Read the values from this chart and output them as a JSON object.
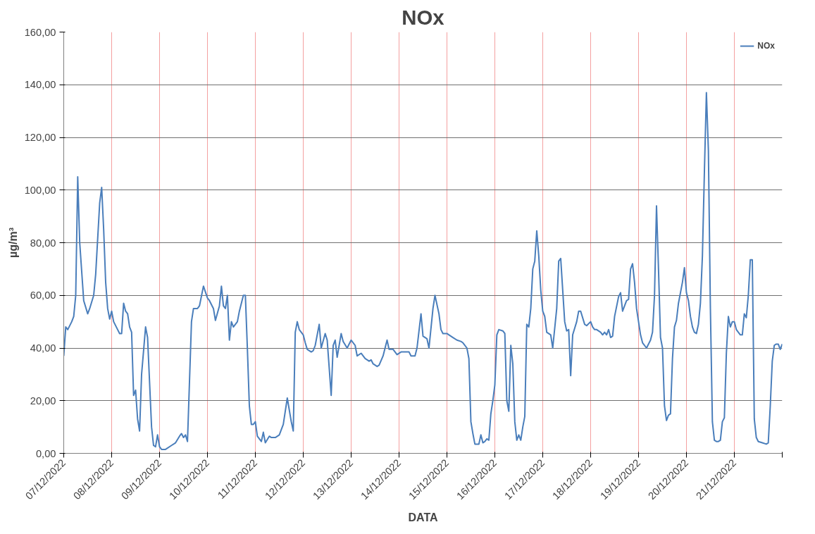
{
  "chart_data": {
    "type": "line",
    "title": "NOx",
    "xlabel": "DATA",
    "ylabel": "µg/m³",
    "legend": "top right",
    "grid": true,
    "marker": "none",
    "line_style": "solid",
    "xlim": [
      "2022-12-07",
      "2022-12-22"
    ],
    "ylim": [
      0,
      160
    ],
    "xticks": [
      {
        "value": "2022-12-07",
        "label": "07/12/2022"
      },
      {
        "value": "2022-12-08",
        "label": "08/12/2022"
      },
      {
        "value": "2022-12-09",
        "label": "09/12/2022"
      },
      {
        "value": "2022-12-10",
        "label": "10/12/2022"
      },
      {
        "value": "2022-12-11",
        "label": "11/12/2022"
      },
      {
        "value": "2022-12-12",
        "label": "12/12/2022"
      },
      {
        "value": "2022-12-13",
        "label": "13/12/2022"
      },
      {
        "value": "2022-12-14",
        "label": "14/12/2022"
      },
      {
        "value": "2022-12-15",
        "label": "15/12/2022"
      },
      {
        "value": "2022-12-16",
        "label": "16/12/2022"
      },
      {
        "value": "2022-12-17",
        "label": "17/12/2022"
      },
      {
        "value": "2022-12-18",
        "label": "18/12/2022"
      },
      {
        "value": "2022-12-19",
        "label": "19/12/2022"
      },
      {
        "value": "2022-12-20",
        "label": "20/12/2022"
      },
      {
        "value": "2022-12-21",
        "label": "21/12/2022"
      },
      {
        "value": "2022-12-22",
        "label": null
      }
    ],
    "yticks": [
      {
        "value": 0,
        "label": "0,00"
      },
      {
        "value": 20,
        "label": "20,00"
      },
      {
        "value": 40,
        "label": "40,00"
      },
      {
        "value": 60,
        "label": "60,00"
      },
      {
        "value": 80,
        "label": "80,00"
      },
      {
        "value": 100,
        "label": "100,00"
      },
      {
        "value": 120,
        "label": "120,00"
      },
      {
        "value": 140,
        "label": "140,00"
      },
      {
        "value": 160,
        "label": "160,00"
      }
    ],
    "series": [
      {
        "name": "NOx",
        "color": "#4a7ebb",
        "x": [
          "2022-12-07T00:00",
          "2022-12-07T01:00",
          "2022-12-07T02:00",
          "2022-12-07T04:00",
          "2022-12-07T05:00",
          "2022-12-07T06:00",
          "2022-12-07T07:00",
          "2022-12-07T08:00",
          "2022-12-07T10:00",
          "2022-12-07T12:00",
          "2022-12-07T13:00",
          "2022-12-07T15:00",
          "2022-12-07T16:00",
          "2022-12-07T18:00",
          "2022-12-07T19:00",
          "2022-12-07T20:00",
          "2022-12-07T21:00",
          "2022-12-07T22:00",
          "2022-12-07T23:00",
          "2022-12-08T00:00",
          "2022-12-08T01:00",
          "2022-12-08T03:00",
          "2022-12-08T04:00",
          "2022-12-08T05:00",
          "2022-12-08T06:00",
          "2022-12-08T07:00",
          "2022-12-08T08:00",
          "2022-12-08T09:00",
          "2022-12-08T10:00",
          "2022-12-08T11:00",
          "2022-12-08T12:00",
          "2022-12-08T13:00",
          "2022-12-08T14:00",
          "2022-12-08T15:00",
          "2022-12-08T17:00",
          "2022-12-08T18:00",
          "2022-12-08T20:00",
          "2022-12-08T21:00",
          "2022-12-08T22:00",
          "2022-12-08T23:00",
          "2022-12-09T00:00",
          "2022-12-09T01:00",
          "2022-12-09T03:00",
          "2022-12-09T06:00",
          "2022-12-09T08:00",
          "2022-12-09T10:00",
          "2022-12-09T11:00",
          "2022-12-09T12:00",
          "2022-12-09T13:00",
          "2022-12-09T14:00",
          "2022-12-09T16:00",
          "2022-12-09T17:00",
          "2022-12-09T19:00",
          "2022-12-09T20:00",
          "2022-12-09T22:00",
          "2022-12-10T00:00",
          "2022-12-10T01:00",
          "2022-12-10T03:00",
          "2022-12-10T04:00",
          "2022-12-10T06:00",
          "2022-12-10T07:00",
          "2022-12-10T08:00",
          "2022-12-10T09:00",
          "2022-12-10T10:00",
          "2022-12-10T11:00",
          "2022-12-10T12:00",
          "2022-12-10T13:00",
          "2022-12-10T15:00",
          "2022-12-10T16:00",
          "2022-12-10T18:00",
          "2022-12-10T19:00",
          "2022-12-10T20:00",
          "2022-12-10T21:00",
          "2022-12-10T22:00",
          "2022-12-10T23:00",
          "2022-12-11T00:00",
          "2022-12-11T01:00",
          "2022-12-11T03:00",
          "2022-12-11T04:00",
          "2022-12-11T05:00",
          "2022-12-11T07:00",
          "2022-12-11T08:00",
          "2022-12-11T09:00",
          "2022-12-11T10:00",
          "2022-12-11T12:00",
          "2022-12-11T14:00",
          "2022-12-11T16:00",
          "2022-12-11T18:00",
          "2022-12-11T19:00",
          "2022-12-11T20:00",
          "2022-12-11T21:00",
          "2022-12-11T22:00",
          "2022-12-12T00:00",
          "2022-12-12T01:00",
          "2022-12-12T02:00",
          "2022-12-12T04:00",
          "2022-12-12T05:00",
          "2022-12-12T06:00",
          "2022-12-12T08:00",
          "2022-12-12T09:00",
          "2022-12-12T11:00",
          "2022-12-12T12:00",
          "2022-12-12T14:00",
          "2022-12-12T15:00",
          "2022-12-12T16:00",
          "2022-12-12T17:00",
          "2022-12-12T19:00",
          "2022-12-12T20:00",
          "2022-12-12T22:00",
          "2022-12-13T00:00",
          "2022-12-13T02:00",
          "2022-12-13T03:00",
          "2022-12-13T05:00",
          "2022-12-13T07:00",
          "2022-12-13T09:00",
          "2022-12-13T10:00",
          "2022-12-13T11:00",
          "2022-12-13T13:00",
          "2022-12-13T14:00",
          "2022-12-13T16:00",
          "2022-12-13T18:00",
          "2022-12-13T19:00",
          "2022-12-13T21:00",
          "2022-12-13T23:00",
          "2022-12-14T01:00",
          "2022-12-14T03:00",
          "2022-12-14T05:00",
          "2022-12-14T06:00",
          "2022-12-14T08:00",
          "2022-12-14T09:00",
          "2022-12-14T11:00",
          "2022-12-14T12:00",
          "2022-12-14T14:00",
          "2022-12-14T15:00",
          "2022-12-14T17:00",
          "2022-12-14T18:00",
          "2022-12-14T20:00",
          "2022-12-14T21:00",
          "2022-12-14T22:00",
          "2022-12-15T00:00",
          "2022-12-15T01:00",
          "2022-12-15T03:00",
          "2022-12-15T05:00",
          "2022-12-15T07:00",
          "2022-12-15T08:00",
          "2022-12-15T10:00",
          "2022-12-15T11:00",
          "2022-12-15T12:00",
          "2022-12-15T13:00",
          "2022-12-15T14:00",
          "2022-12-15T16:00",
          "2022-12-15T17:00",
          "2022-12-15T18:00",
          "2022-12-15T19:00",
          "2022-12-15T20:00",
          "2022-12-15T21:00",
          "2022-12-15T22:00",
          "2022-12-15T23:00",
          "2022-12-16T00:00",
          "2022-12-16T01:00",
          "2022-12-16T02:00",
          "2022-12-16T04:00",
          "2022-12-16T05:00",
          "2022-12-16T06:00",
          "2022-12-16T07:00",
          "2022-12-16T08:00",
          "2022-12-16T09:00",
          "2022-12-16T10:00",
          "2022-12-16T11:00",
          "2022-12-16T12:00",
          "2022-12-16T13:00",
          "2022-12-16T14:00",
          "2022-12-16T15:00",
          "2022-12-16T16:00",
          "2022-12-16T17:00",
          "2022-12-16T18:00",
          "2022-12-16T19:00",
          "2022-12-16T20:00",
          "2022-12-16T21:00",
          "2022-12-16T22:00",
          "2022-12-16T23:00",
          "2022-12-17T00:00",
          "2022-12-17T01:00",
          "2022-12-17T02:00",
          "2022-12-17T04:00",
          "2022-12-17T05:00",
          "2022-12-17T07:00",
          "2022-12-17T08:00",
          "2022-12-17T09:00",
          "2022-12-17T11:00",
          "2022-12-17T12:00",
          "2022-12-17T13:00",
          "2022-12-17T14:00",
          "2022-12-17T15:00",
          "2022-12-17T17:00",
          "2022-12-17T18:00",
          "2022-12-17T19:00",
          "2022-12-17T21:00",
          "2022-12-17T22:00",
          "2022-12-18T00:00",
          "2022-12-18T01:00",
          "2022-12-18T02:00",
          "2022-12-18T03:00",
          "2022-12-18T05:00",
          "2022-12-18T06:00",
          "2022-12-18T07:00",
          "2022-12-18T08:00",
          "2022-12-18T09:00",
          "2022-12-18T10:00",
          "2022-12-18T11:00",
          "2022-12-18T12:00",
          "2022-12-18T14:00",
          "2022-12-18T15:00",
          "2022-12-18T16:00",
          "2022-12-18T17:00",
          "2022-12-18T18:00",
          "2022-12-18T19:00",
          "2022-12-18T20:00",
          "2022-12-18T21:00",
          "2022-12-18T22:00",
          "2022-12-18T23:00",
          "2022-12-19T01:00",
          "2022-12-19T02:00",
          "2022-12-19T04:00",
          "2022-12-19T06:00",
          "2022-12-19T07:00",
          "2022-12-19T08:00",
          "2022-12-19T09:00",
          "2022-12-19T10:00",
          "2022-12-19T11:00",
          "2022-12-19T12:00",
          "2022-12-19T13:00",
          "2022-12-19T14:00",
          "2022-12-19T15:00",
          "2022-12-19T16:00",
          "2022-12-19T17:00",
          "2022-12-19T18:00",
          "2022-12-19T19:00",
          "2022-12-19T20:00",
          "2022-12-19T22:00",
          "2022-12-19T23:00",
          "2022-12-20T00:00",
          "2022-12-20T01:00",
          "2022-12-20T02:00",
          "2022-12-20T03:00",
          "2022-12-20T04:00",
          "2022-12-20T05:00",
          "2022-12-20T06:00",
          "2022-12-20T07:00",
          "2022-12-20T08:00",
          "2022-12-20T09:00",
          "2022-12-20T10:00",
          "2022-12-20T11:00",
          "2022-12-20T12:00",
          "2022-12-20T13:00",
          "2022-12-20T14:00",
          "2022-12-20T15:00",
          "2022-12-20T16:00",
          "2022-12-20T17:00",
          "2022-12-20T18:00",
          "2022-12-20T19:00",
          "2022-12-20T20:00",
          "2022-12-20T21:00",
          "2022-12-20T22:00",
          "2022-12-20T23:00",
          "2022-12-21T00:00",
          "2022-12-21T01:00",
          "2022-12-21T02:00",
          "2022-12-21T03:00",
          "2022-12-21T04:00",
          "2022-12-21T05:00",
          "2022-12-21T06:00",
          "2022-12-21T07:00",
          "2022-12-21T08:00",
          "2022-12-21T09:00",
          "2022-12-21T10:00",
          "2022-12-21T11:00",
          "2022-12-21T12:00",
          "2022-12-21T14:00",
          "2022-12-21T16:00",
          "2022-12-21T17:00",
          "2022-12-21T18:00",
          "2022-12-21T19:00",
          "2022-12-21T20:00",
          "2022-12-21T21:00",
          "2022-12-21T22:00",
          "2022-12-21T23:00",
          "2022-12-22T00:00"
        ],
        "values": [
          37,
          48,
          47,
          50,
          52,
          60,
          105,
          80,
          58,
          53,
          55,
          60,
          68,
          95,
          101,
          85,
          65,
          55,
          51,
          54,
          50,
          47,
          45.5,
          45.5,
          57,
          54,
          53,
          48,
          46,
          22,
          24,
          13,
          8.5,
          30,
          48,
          44,
          10,
          3,
          2.5,
          7,
          2.5,
          1.5,
          1.5,
          3,
          4,
          6.5,
          7.5,
          6,
          7,
          4.5,
          50,
          55,
          55,
          56,
          63.5,
          59,
          58,
          55,
          50.5,
          56,
          63.5,
          56,
          55,
          60,
          43,
          50,
          48,
          50,
          54,
          60,
          60,
          40,
          18,
          11,
          11,
          12,
          6.5,
          4.5,
          8,
          4,
          6.5,
          6,
          6,
          6,
          7,
          11,
          21,
          12,
          8.5,
          46,
          50,
          47,
          45,
          42,
          39.5,
          38.5,
          39,
          41,
          49,
          40,
          45.5,
          43,
          22,
          41,
          43,
          36.5,
          45.5,
          42.5,
          40,
          43,
          41,
          37,
          38,
          36,
          35,
          35.5,
          34,
          33,
          33.5,
          37,
          43,
          39.5,
          39.5,
          37.5,
          38.5,
          38.5,
          38.5,
          37,
          37,
          40,
          53,
          44.5,
          43.5,
          40,
          55,
          60,
          53,
          47,
          45.5,
          45.5,
          45,
          44,
          43,
          42.5,
          42,
          40,
          36,
          12,
          7.5,
          3.5,
          3.5,
          7,
          4,
          4.5,
          5.5,
          5,
          15,
          20,
          26,
          45,
          47,
          46.5,
          45.5,
          20,
          16,
          41,
          34,
          12,
          5,
          7,
          5,
          10,
          14,
          49,
          48,
          55,
          70,
          73,
          84.5,
          75,
          62,
          54,
          52,
          46,
          45,
          40,
          55,
          73,
          74,
          50,
          46.5,
          47,
          29.5,
          45,
          50,
          54,
          54,
          49,
          48.5,
          50,
          48,
          47,
          47,
          46,
          45,
          46,
          45,
          47,
          44,
          44.5,
          52,
          59.5,
          61,
          54,
          56,
          58,
          58.5,
          70,
          72,
          65,
          55,
          45,
          42,
          40,
          43,
          46,
          60,
          94,
          70,
          44,
          40,
          18,
          12.5,
          14.5,
          15,
          36,
          48,
          50.5,
          57,
          65,
          70.5,
          61,
          58,
          52,
          48,
          46,
          45.5,
          49,
          57,
          75,
          107,
          137,
          115,
          55,
          12,
          5,
          4.5,
          4.5,
          5,
          12,
          13.5,
          38,
          52,
          48,
          50,
          50,
          47,
          46,
          45,
          45,
          53,
          51.5,
          60,
          73.5,
          73.5,
          13,
          6,
          4.5,
          4,
          3.5,
          4,
          18,
          35,
          41,
          41.5,
          41.5,
          39.5,
          41.5
        ]
      }
    ]
  }
}
